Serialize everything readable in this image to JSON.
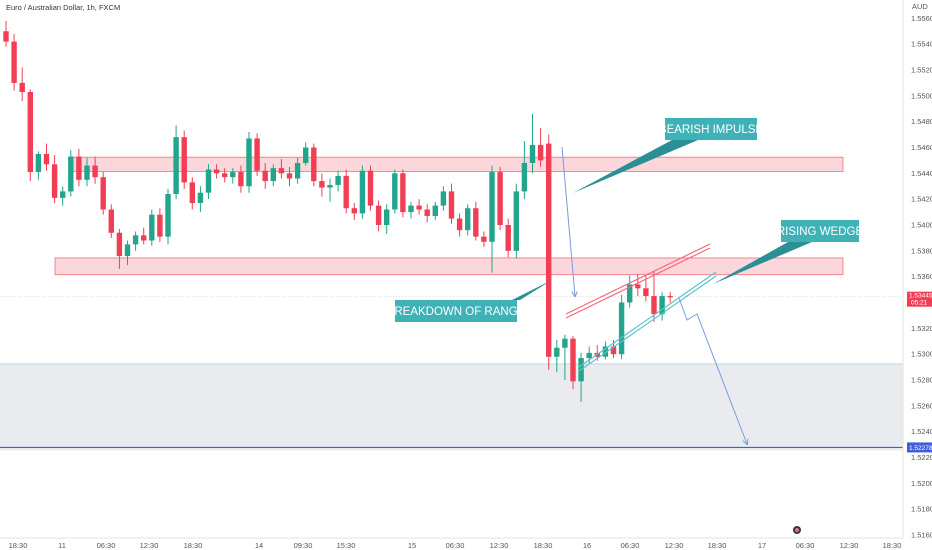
{
  "header": {
    "title": "Euro / Australian Dollar, 1h, FXCM",
    "currency": "AUD"
  },
  "colors": {
    "up": "#22a58b",
    "down": "#f23e55",
    "zone_fill": "#fbd6da",
    "zone_stroke": "#f26d7d",
    "target_fill": "#e9ebee",
    "target_line": "#3d5fd9",
    "annotation_bg": "#3fb2b8",
    "annotation_shadow": "#2b8f95",
    "arrow": "#7a9be0",
    "wedge_upper": "#f26d7d",
    "wedge_lower": "#5bc4cc"
  },
  "chart_data": {
    "type": "candlestick",
    "title": "Euro / Australian Dollar, 1h, FXCM",
    "y_axis_unit": "AUD",
    "ylim": [
      1.516,
      1.5568
    ],
    "y_ticks": [
      "1.55600",
      "1.55400",
      "1.55200",
      "1.55000",
      "1.54800",
      "1.54600",
      "1.54400",
      "1.54200",
      "1.54000",
      "1.53800",
      "1.53600",
      "1.53400",
      "1.53200",
      "1.53000",
      "1.52800",
      "1.52600",
      "1.52400",
      "1.52200",
      "1.52000",
      "1.51800",
      "1.51600"
    ],
    "x_ticks": [
      "18:30",
      "11",
      "06:30",
      "12:30",
      "18:30",
      "14",
      "09:30",
      "15:30",
      "15",
      "06:30",
      "12:30",
      "18:30",
      "16",
      "06:30",
      "12:30",
      "18:30",
      "17",
      "06:30",
      "12:30",
      "18:30"
    ],
    "current_price": {
      "label": "1.53445",
      "countdown": "05:21",
      "value": 1.53445
    },
    "target_price": {
      "label": "1.52278",
      "value": 1.52278
    },
    "resistance_zone": [
      1.54415,
      1.54525
    ],
    "support_zone": [
      1.53615,
      1.53745
    ],
    "target_zone": [
      1.52255,
      1.52925
    ],
    "candles": [
      {
        "o": 1.555,
        "h": 1.5558,
        "l": 1.5538,
        "c": 1.5542
      },
      {
        "o": 1.5542,
        "h": 1.5548,
        "l": 1.5504,
        "c": 1.551
      },
      {
        "o": 1.551,
        "h": 1.5522,
        "l": 1.5496,
        "c": 1.5503
      },
      {
        "o": 1.5503,
        "h": 1.5505,
        "l": 1.5434,
        "c": 1.5441
      },
      {
        "o": 1.5441,
        "h": 1.5457,
        "l": 1.5435,
        "c": 1.5455
      },
      {
        "o": 1.5455,
        "h": 1.5463,
        "l": 1.5442,
        "c": 1.5447
      },
      {
        "o": 1.5447,
        "h": 1.5454,
        "l": 1.5417,
        "c": 1.5421
      },
      {
        "o": 1.5421,
        "h": 1.543,
        "l": 1.5415,
        "c": 1.5426
      },
      {
        "o": 1.5426,
        "h": 1.5458,
        "l": 1.5422,
        "c": 1.5453
      },
      {
        "o": 1.5453,
        "h": 1.5459,
        "l": 1.543,
        "c": 1.5435
      },
      {
        "o": 1.5435,
        "h": 1.5452,
        "l": 1.543,
        "c": 1.5446
      },
      {
        "o": 1.5446,
        "h": 1.5453,
        "l": 1.5432,
        "c": 1.5437
      },
      {
        "o": 1.5437,
        "h": 1.5441,
        "l": 1.5408,
        "c": 1.5412
      },
      {
        "o": 1.5412,
        "h": 1.5416,
        "l": 1.539,
        "c": 1.5394
      },
      {
        "o": 1.5394,
        "h": 1.5397,
        "l": 1.5366,
        "c": 1.5376
      },
      {
        "o": 1.5376,
        "h": 1.5388,
        "l": 1.5369,
        "c": 1.5385
      },
      {
        "o": 1.5385,
        "h": 1.5395,
        "l": 1.538,
        "c": 1.5392
      },
      {
        "o": 1.5392,
        "h": 1.5398,
        "l": 1.5385,
        "c": 1.5388
      },
      {
        "o": 1.5388,
        "h": 1.5412,
        "l": 1.5384,
        "c": 1.5408
      },
      {
        "o": 1.5408,
        "h": 1.5413,
        "l": 1.5387,
        "c": 1.5391
      },
      {
        "o": 1.5391,
        "h": 1.5428,
        "l": 1.5385,
        "c": 1.5424
      },
      {
        "o": 1.5424,
        "h": 1.5477,
        "l": 1.542,
        "c": 1.5468
      },
      {
        "o": 1.5468,
        "h": 1.5473,
        "l": 1.5428,
        "c": 1.5433
      },
      {
        "o": 1.5433,
        "h": 1.5437,
        "l": 1.5412,
        "c": 1.5417
      },
      {
        "o": 1.5417,
        "h": 1.543,
        "l": 1.541,
        "c": 1.5425
      },
      {
        "o": 1.5425,
        "h": 1.5447,
        "l": 1.542,
        "c": 1.5443
      },
      {
        "o": 1.5443,
        "h": 1.5447,
        "l": 1.5436,
        "c": 1.544
      },
      {
        "o": 1.544,
        "h": 1.5444,
        "l": 1.5433,
        "c": 1.5437
      },
      {
        "o": 1.5437,
        "h": 1.5444,
        "l": 1.5432,
        "c": 1.5441
      },
      {
        "o": 1.5441,
        "h": 1.5446,
        "l": 1.5425,
        "c": 1.543
      },
      {
        "o": 1.543,
        "h": 1.5472,
        "l": 1.5425,
        "c": 1.5467
      },
      {
        "o": 1.5467,
        "h": 1.5471,
        "l": 1.5438,
        "c": 1.5442
      },
      {
        "o": 1.5442,
        "h": 1.5448,
        "l": 1.5428,
        "c": 1.5434
      },
      {
        "o": 1.5434,
        "h": 1.5447,
        "l": 1.543,
        "c": 1.5444
      },
      {
        "o": 1.5444,
        "h": 1.5451,
        "l": 1.5436,
        "c": 1.544
      },
      {
        "o": 1.544,
        "h": 1.5445,
        "l": 1.543,
        "c": 1.5436
      },
      {
        "o": 1.5436,
        "h": 1.5452,
        "l": 1.5432,
        "c": 1.5448
      },
      {
        "o": 1.5448,
        "h": 1.5464,
        "l": 1.5446,
        "c": 1.546
      },
      {
        "o": 1.546,
        "h": 1.5463,
        "l": 1.543,
        "c": 1.5434
      },
      {
        "o": 1.5434,
        "h": 1.544,
        "l": 1.5422,
        "c": 1.5429
      },
      {
        "o": 1.5429,
        "h": 1.5436,
        "l": 1.5418,
        "c": 1.5431
      },
      {
        "o": 1.5431,
        "h": 1.5442,
        "l": 1.5426,
        "c": 1.5438
      },
      {
        "o": 1.5438,
        "h": 1.5443,
        "l": 1.5409,
        "c": 1.5413
      },
      {
        "o": 1.5413,
        "h": 1.5417,
        "l": 1.5404,
        "c": 1.5409
      },
      {
        "o": 1.5409,
        "h": 1.5446,
        "l": 1.5405,
        "c": 1.5442
      },
      {
        "o": 1.5442,
        "h": 1.5446,
        "l": 1.5411,
        "c": 1.5415
      },
      {
        "o": 1.5415,
        "h": 1.5419,
        "l": 1.5395,
        "c": 1.54
      },
      {
        "o": 1.54,
        "h": 1.5416,
        "l": 1.5393,
        "c": 1.5412
      },
      {
        "o": 1.5412,
        "h": 1.5443,
        "l": 1.5409,
        "c": 1.544
      },
      {
        "o": 1.544,
        "h": 1.5443,
        "l": 1.5406,
        "c": 1.541
      },
      {
        "o": 1.541,
        "h": 1.5418,
        "l": 1.5405,
        "c": 1.5415
      },
      {
        "o": 1.5415,
        "h": 1.542,
        "l": 1.5408,
        "c": 1.5412
      },
      {
        "o": 1.5412,
        "h": 1.5416,
        "l": 1.5402,
        "c": 1.5407
      },
      {
        "o": 1.5407,
        "h": 1.5418,
        "l": 1.5404,
        "c": 1.5415
      },
      {
        "o": 1.5415,
        "h": 1.543,
        "l": 1.5411,
        "c": 1.5426
      },
      {
        "o": 1.5426,
        "h": 1.5432,
        "l": 1.5401,
        "c": 1.5405
      },
      {
        "o": 1.5405,
        "h": 1.5409,
        "l": 1.5391,
        "c": 1.5396
      },
      {
        "o": 1.5396,
        "h": 1.5416,
        "l": 1.5392,
        "c": 1.5413
      },
      {
        "o": 1.5413,
        "h": 1.5418,
        "l": 1.5388,
        "c": 1.5391
      },
      {
        "o": 1.5391,
        "h": 1.5395,
        "l": 1.5383,
        "c": 1.5387
      },
      {
        "o": 1.5387,
        "h": 1.5446,
        "l": 1.5363,
        "c": 1.5441
      },
      {
        "o": 1.5441,
        "h": 1.5445,
        "l": 1.5396,
        "c": 1.54
      },
      {
        "o": 1.54,
        "h": 1.5405,
        "l": 1.5375,
        "c": 1.538
      },
      {
        "o": 1.538,
        "h": 1.5432,
        "l": 1.5374,
        "c": 1.5426
      },
      {
        "o": 1.5426,
        "h": 1.5465,
        "l": 1.542,
        "c": 1.5448
      },
      {
        "o": 1.5448,
        "h": 1.5486,
        "l": 1.544,
        "c": 1.5462
      },
      {
        "o": 1.5462,
        "h": 1.5475,
        "l": 1.5445,
        "c": 1.545
      },
      {
        "o": 1.5463,
        "h": 1.547,
        "l": 1.5288,
        "c": 1.5298
      },
      {
        "o": 1.5298,
        "h": 1.5311,
        "l": 1.5286,
        "c": 1.5305
      },
      {
        "o": 1.5305,
        "h": 1.5315,
        "l": 1.528,
        "c": 1.5312
      },
      {
        "o": 1.5312,
        "h": 1.5314,
        "l": 1.5273,
        "c": 1.5279
      },
      {
        "o": 1.5279,
        "h": 1.5301,
        "l": 1.5263,
        "c": 1.5297
      },
      {
        "o": 1.5297,
        "h": 1.5306,
        "l": 1.5293,
        "c": 1.5301
      },
      {
        "o": 1.5301,
        "h": 1.5307,
        "l": 1.5295,
        "c": 1.5298
      },
      {
        "o": 1.5298,
        "h": 1.531,
        "l": 1.5296,
        "c": 1.5306
      },
      {
        "o": 1.5306,
        "h": 1.5311,
        "l": 1.5297,
        "c": 1.53
      },
      {
        "o": 1.53,
        "h": 1.5346,
        "l": 1.5296,
        "c": 1.534
      },
      {
        "o": 1.534,
        "h": 1.5361,
        "l": 1.5336,
        "c": 1.5354
      },
      {
        "o": 1.5354,
        "h": 1.5362,
        "l": 1.5345,
        "c": 1.5351
      },
      {
        "o": 1.5351,
        "h": 1.5361,
        "l": 1.5341,
        "c": 1.5345
      },
      {
        "o": 1.5345,
        "h": 1.5364,
        "l": 1.5325,
        "c": 1.5331
      },
      {
        "o": 1.5331,
        "h": 1.5348,
        "l": 1.5326,
        "c": 1.5345
      },
      {
        "o": 1.5345,
        "h": 1.5348,
        "l": 1.534,
        "c": 1.5344
      }
    ],
    "annotations": [
      {
        "id": "bearish-impulse",
        "text": "BEARISH IMPULSE"
      },
      {
        "id": "rising-wedge",
        "text": "RISING WEDGE"
      },
      {
        "id": "breakdown-of-range",
        "text": "BREAKDOWN OF RANGE"
      }
    ]
  }
}
